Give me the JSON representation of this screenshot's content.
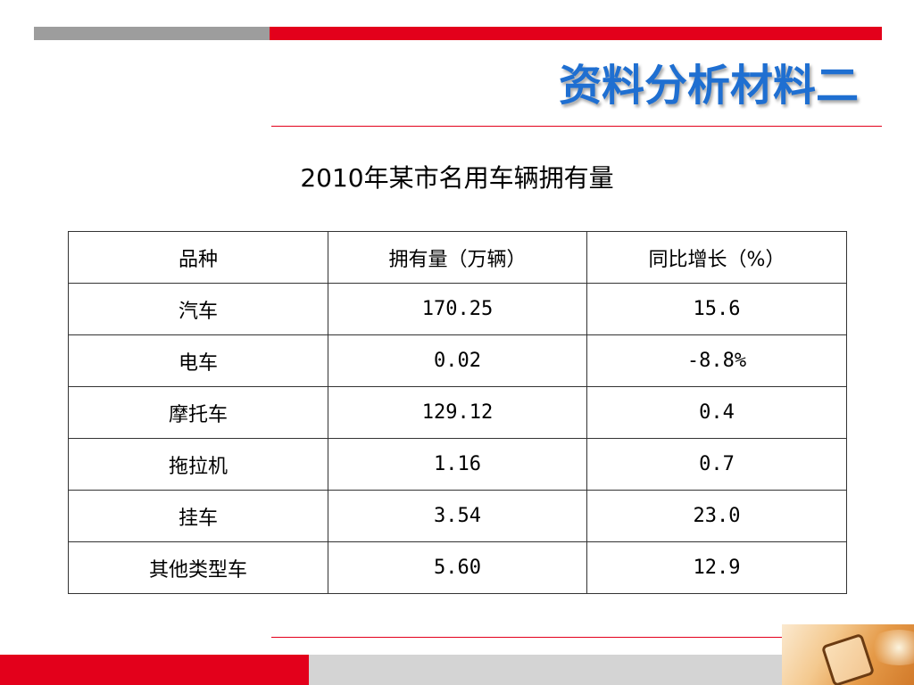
{
  "slide": {
    "title": "资料分析材料二",
    "caption": "2010年某市名用车辆拥有量"
  },
  "table": {
    "headers": [
      "品种",
      "拥有量（万辆）",
      "同比增长（%）"
    ],
    "rows": [
      [
        "汽车",
        "170.25",
        "15.6"
      ],
      [
        "电车",
        "0.02",
        "-8.8%"
      ],
      [
        "摩托车",
        "129.12",
        "0.4"
      ],
      [
        "拖拉机",
        "1.16",
        "0.7"
      ],
      [
        "挂车",
        "3.54",
        "23.0"
      ],
      [
        "其他类型车",
        "5.60",
        "12.9"
      ]
    ]
  },
  "colors": {
    "accent_red": "#e3001b",
    "title_blue": "#1f6fd1",
    "bar_gray": "#9d9d9d"
  }
}
